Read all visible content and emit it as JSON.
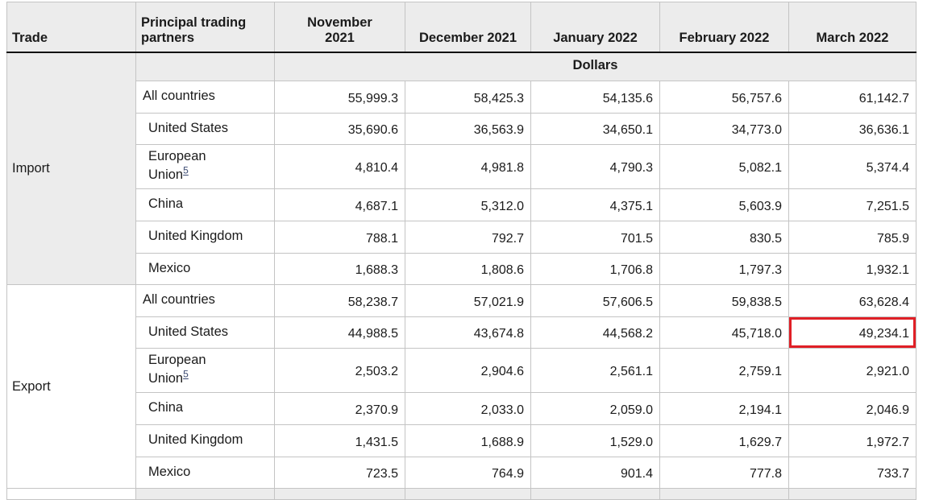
{
  "table": {
    "header": {
      "trade": "Trade",
      "partners": "Principal trading partners",
      "months": [
        "November 2021",
        "December 2021",
        "January 2022",
        "February 2022",
        "March 2022"
      ]
    },
    "unit_label": "Dollars",
    "footnote_marker": "5",
    "sections": [
      {
        "trade": "Import",
        "rows": [
          {
            "partner": "All countries",
            "values": [
              "55,999.3",
              "58,425.3",
              "54,135.6",
              "56,757.6",
              "61,142.7"
            ]
          },
          {
            "partner": "United States",
            "values": [
              "35,690.6",
              "36,563.9",
              "34,650.1",
              "34,773.0",
              "36,636.1"
            ]
          },
          {
            "partner": "European Union",
            "values": [
              "4,810.4",
              "4,981.8",
              "4,790.3",
              "5,082.1",
              "5,374.4"
            ]
          },
          {
            "partner": "China",
            "values": [
              "4,687.1",
              "5,312.0",
              "4,375.1",
              "5,603.9",
              "7,251.5"
            ]
          },
          {
            "partner": "United Kingdom",
            "values": [
              "788.1",
              "792.7",
              "701.5",
              "830.5",
              "785.9"
            ]
          },
          {
            "partner": "Mexico",
            "values": [
              "1,688.3",
              "1,808.6",
              "1,706.8",
              "1,797.3",
              "1,932.1"
            ]
          }
        ]
      },
      {
        "trade": "Export",
        "rows": [
          {
            "partner": "All countries",
            "values": [
              "58,238.7",
              "57,021.9",
              "57,606.5",
              "59,838.5",
              "63,628.4"
            ]
          },
          {
            "partner": "United States",
            "values": [
              "44,988.5",
              "43,674.8",
              "44,568.2",
              "45,718.0",
              "49,234.1"
            ]
          },
          {
            "partner": "European Union",
            "values": [
              "2,503.2",
              "2,904.6",
              "2,561.1",
              "2,759.1",
              "2,921.0"
            ]
          },
          {
            "partner": "China",
            "values": [
              "2,370.9",
              "2,033.0",
              "2,059.0",
              "2,194.1",
              "2,046.9"
            ]
          },
          {
            "partner": "United Kingdom",
            "values": [
              "1,431.5",
              "1,688.9",
              "1,529.0",
              "1,629.7",
              "1,972.7"
            ]
          },
          {
            "partner": "Mexico",
            "values": [
              "723.5",
              "764.9",
              "901.4",
              "777.8",
              "733.7"
            ]
          }
        ]
      }
    ],
    "highlight": {
      "section": "Export",
      "partner": "United States",
      "month": "March 2022",
      "value": "49,234.1"
    },
    "colors": {
      "hl": "#e01f26",
      "hdr": "#ececec"
    }
  }
}
